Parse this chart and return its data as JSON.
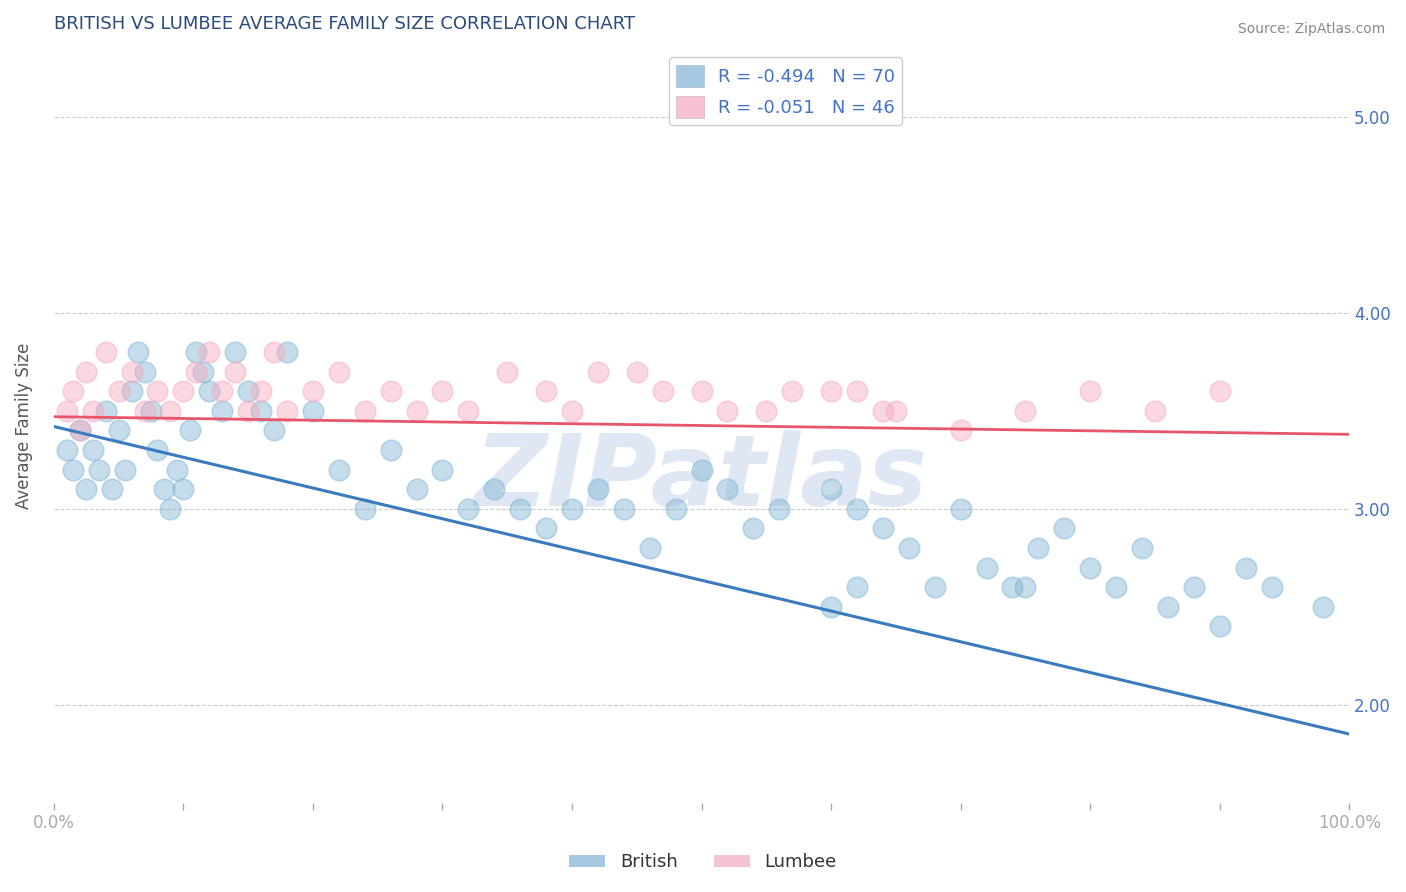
{
  "title": "BRITISH VS LUMBEE AVERAGE FAMILY SIZE CORRELATION CHART",
  "source": "Source: ZipAtlas.com",
  "ylabel": "Average Family Size",
  "xlim": [
    0.0,
    1.0
  ],
  "ylim": [
    1.5,
    5.35
  ],
  "yticks": [
    2.0,
    3.0,
    4.0,
    5.0
  ],
  "xtick_positions": [
    0.0,
    0.1,
    0.2,
    0.3,
    0.4,
    0.5,
    0.6,
    0.7,
    0.8,
    0.9,
    1.0
  ],
  "xtick_labels": [
    "0.0%",
    "",
    "",
    "",
    "",
    "",
    "",
    "",
    "",
    "",
    "100.0%"
  ],
  "british_color": "#7fb3d3",
  "lumbee_color": "#f4a8be",
  "british_line_color": "#3a7bbf",
  "lumbee_line_color": "#e8556a",
  "title_color": "#2c4a7c",
  "axis_color": "#4472c4",
  "legend_label_1": "R = -0.494   N = 70",
  "legend_label_2": "R = -0.051   N = 46",
  "watermark": "ZIPatlas",
  "background_color": "#ffffff",
  "grid_color": "#cccccc",
  "british_x": [
    0.01,
    0.015,
    0.02,
    0.025,
    0.03,
    0.035,
    0.04,
    0.045,
    0.05,
    0.055,
    0.06,
    0.065,
    0.07,
    0.075,
    0.08,
    0.085,
    0.09,
    0.095,
    0.1,
    0.105,
    0.11,
    0.115,
    0.12,
    0.13,
    0.14,
    0.15,
    0.16,
    0.17,
    0.18,
    0.2,
    0.22,
    0.24,
    0.26,
    0.28,
    0.3,
    0.32,
    0.34,
    0.36,
    0.38,
    0.4,
    0.42,
    0.44,
    0.46,
    0.48,
    0.5,
    0.52,
    0.54,
    0.56,
    0.6,
    0.62,
    0.64,
    0.66,
    0.68,
    0.7,
    0.72,
    0.74,
    0.76,
    0.78,
    0.8,
    0.82,
    0.84,
    0.86,
    0.88,
    0.9,
    0.92,
    0.94,
    0.6,
    0.62,
    0.75,
    0.98
  ],
  "british_y": [
    3.3,
    3.2,
    3.4,
    3.1,
    3.3,
    3.2,
    3.5,
    3.1,
    3.4,
    3.2,
    3.6,
    3.8,
    3.7,
    3.5,
    3.3,
    3.1,
    3.0,
    3.2,
    3.1,
    3.4,
    3.8,
    3.7,
    3.6,
    3.5,
    3.8,
    3.6,
    3.5,
    3.4,
    3.8,
    3.5,
    3.2,
    3.0,
    3.3,
    3.1,
    3.2,
    3.0,
    3.1,
    3.0,
    2.9,
    3.0,
    3.1,
    3.0,
    2.8,
    3.0,
    3.2,
    3.1,
    2.9,
    3.0,
    3.1,
    3.0,
    2.9,
    2.8,
    2.6,
    3.0,
    2.7,
    2.6,
    2.8,
    2.9,
    2.7,
    2.6,
    2.8,
    2.5,
    2.6,
    2.4,
    2.7,
    2.6,
    2.5,
    2.6,
    2.6,
    2.5
  ],
  "lumbee_x": [
    0.01,
    0.015,
    0.02,
    0.025,
    0.03,
    0.04,
    0.05,
    0.06,
    0.07,
    0.08,
    0.09,
    0.1,
    0.11,
    0.12,
    0.13,
    0.14,
    0.15,
    0.16,
    0.17,
    0.18,
    0.2,
    0.22,
    0.24,
    0.26,
    0.28,
    0.3,
    0.32,
    0.35,
    0.38,
    0.4,
    0.45,
    0.5,
    0.55,
    0.6,
    0.65,
    0.7,
    0.75,
    0.8,
    0.85,
    0.9,
    0.62,
    0.64,
    0.42,
    0.47,
    0.52,
    0.57
  ],
  "lumbee_y": [
    3.5,
    3.6,
    3.4,
    3.7,
    3.5,
    3.8,
    3.6,
    3.7,
    3.5,
    3.6,
    3.5,
    3.6,
    3.7,
    3.8,
    3.6,
    3.7,
    3.5,
    3.6,
    3.8,
    3.5,
    3.6,
    3.7,
    3.5,
    3.6,
    3.5,
    3.6,
    3.5,
    3.7,
    3.6,
    3.5,
    3.7,
    3.6,
    3.5,
    3.6,
    3.5,
    3.4,
    3.5,
    3.6,
    3.5,
    3.6,
    3.6,
    3.5,
    3.7,
    3.6,
    3.5,
    3.6
  ],
  "brit_line_x0": 0.0,
  "brit_line_y0": 3.42,
  "brit_line_x1": 1.0,
  "brit_line_y1": 1.85,
  "lumb_line_x0": 0.0,
  "lumb_line_y0": 3.47,
  "lumb_line_x1": 1.0,
  "lumb_line_y1": 3.38
}
